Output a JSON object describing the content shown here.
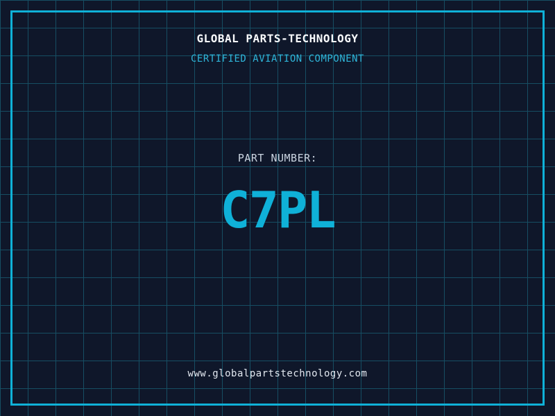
{
  "theme": {
    "background": "#0f172a",
    "grid_line": "#164e63",
    "frame": "#0fb1d8",
    "accent": "#0fb1d8",
    "title_color": "#f8fafc",
    "subtitle_color": "#2fb5d9",
    "label_color": "#cbd5e1",
    "url_color": "#e2e8f0"
  },
  "header": {
    "title": "GLOBAL PARTS-TECHNOLOGY",
    "subtitle": "CERTIFIED AVIATION COMPONENT"
  },
  "part": {
    "label": "PART NUMBER:",
    "number": "C7PL"
  },
  "footer": {
    "url": "www.globalpartstechnology.com"
  }
}
